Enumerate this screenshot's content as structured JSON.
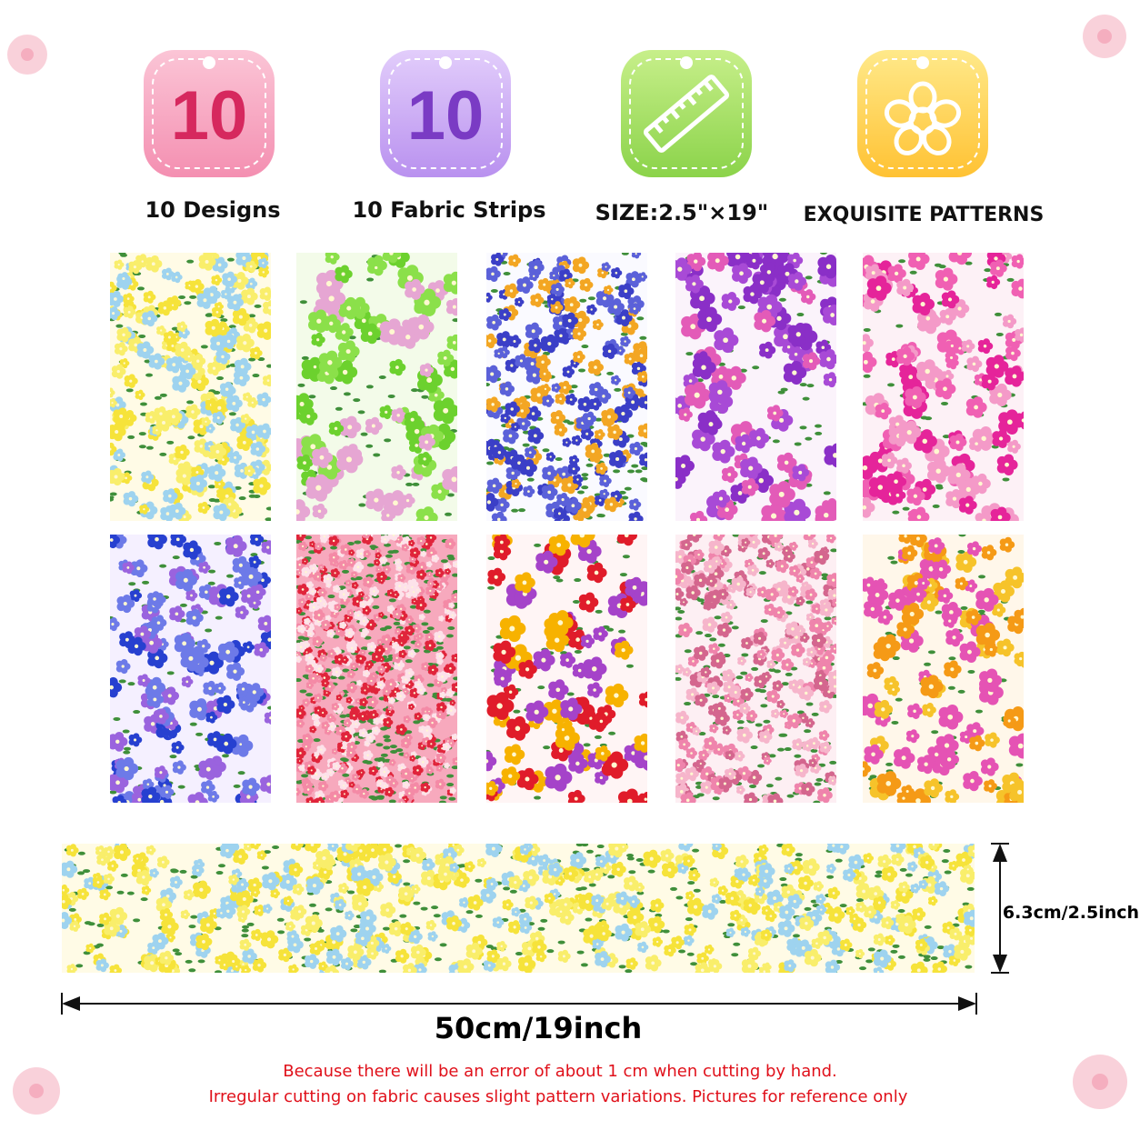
{
  "badges": [
    {
      "number": "10",
      "label": "10 Designs"
    },
    {
      "number": "10",
      "label": "10 Fabric Strips"
    },
    {
      "label": "SIZE:2.5\"×19\""
    },
    {
      "label": "EXQUISITE PATTERNS"
    }
  ],
  "dimensions": {
    "height": "6.3cm/2.5inch",
    "width": "50cm/19inch"
  },
  "notes": [
    "Because there will be an error of about 1 cm when cutting by hand.",
    "Irregular cutting on fabric causes slight pattern variations. Pictures for reference only"
  ]
}
